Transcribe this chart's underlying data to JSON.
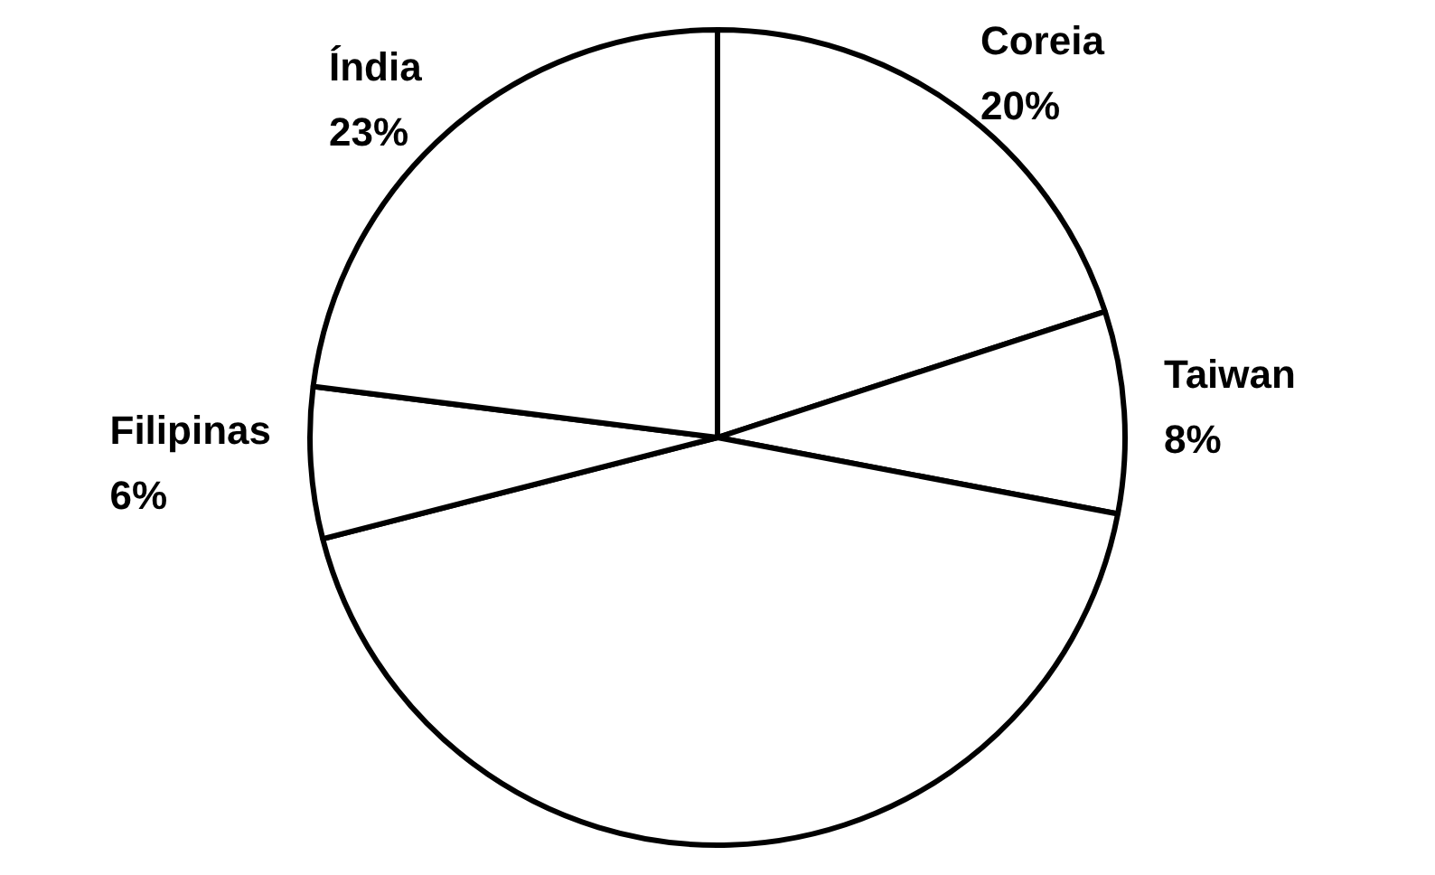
{
  "chart_data": {
    "type": "pie",
    "categories": [
      "Coreia",
      "Taiwan",
      null,
      "Filipinas",
      "Índia"
    ],
    "values": [
      20,
      8,
      43,
      6,
      23
    ],
    "colors": [
      "#ffffff",
      "#ffffff",
      "#ffffff",
      "#ffffff",
      "#ffffff"
    ],
    "value_labels": [
      "20%",
      "8%",
      null,
      "6%",
      "23%"
    ]
  }
}
